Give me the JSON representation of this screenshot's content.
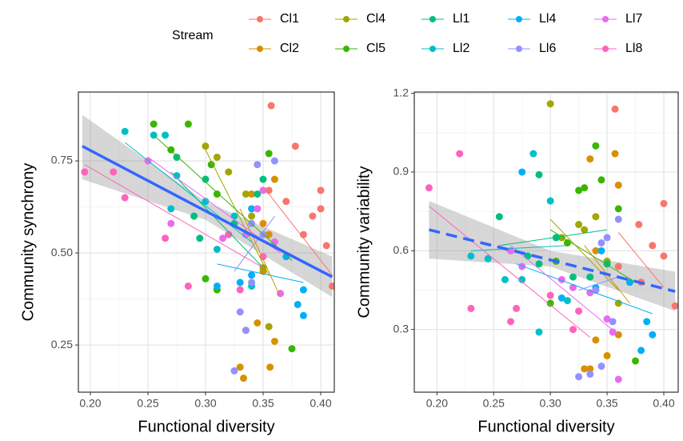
{
  "legend_title": "Stream",
  "chart_data": [
    {
      "type": "scatter",
      "xlabel": "Functional diversity",
      "ylabel": "Community synchrony",
      "xlim": [
        0.1896,
        0.4118
      ],
      "ylim": [
        0.122,
        0.937
      ],
      "xticks": [
        {
          "value": 0.2,
          "label": "0.20"
        },
        {
          "value": 0.25,
          "label": "0.25"
        },
        {
          "value": 0.3,
          "label": "0.30"
        },
        {
          "value": 0.35,
          "label": "0.35"
        },
        {
          "value": 0.4,
          "label": "0.40"
        }
      ],
      "yticks": [
        0.25,
        {
          "value": 0.5,
          "label": "0.50"
        },
        0.75
      ],
      "grid": true,
      "series": [
        {
          "name": "Cl1",
          "color": "#F8766D",
          "x": [
            0.357,
            0.378,
            0.4,
            0.393,
            0.4,
            0.405,
            0.41,
            0.385,
            0.37,
            0.355
          ],
          "values": [
            0.9,
            0.79,
            0.67,
            0.6,
            0.62,
            0.52,
            0.41,
            0.55,
            0.64,
            0.67
          ],
          "fit_x": [
            0.35,
            0.41
          ],
          "fit_y": [
            0.68,
            0.44
          ]
        },
        {
          "name": "Cl2",
          "color": "#D89000",
          "x": [
            0.333,
            0.33,
            0.335,
            0.345,
            0.36,
            0.35,
            0.355,
            0.36,
            0.34,
            0.35,
            0.356
          ],
          "values": [
            0.16,
            0.19,
            0.29,
            0.31,
            0.26,
            0.45,
            0.55,
            0.7,
            0.66,
            0.58,
            0.19
          ],
          "fit_x": [
            0.33,
            0.365
          ],
          "fit_y": [
            0.62,
            0.38
          ]
        },
        {
          "name": "Cl4",
          "color": "#A3A500",
          "x": [
            0.3,
            0.31,
            0.32,
            0.335,
            0.34,
            0.35,
            0.355,
            0.345
          ],
          "values": [
            0.79,
            0.76,
            0.72,
            0.66,
            0.6,
            0.46,
            0.3,
            0.62
          ],
          "fit_x": [
            0.3,
            0.355
          ],
          "fit_y": [
            0.78,
            0.44
          ]
        },
        {
          "name": "Cl5",
          "color": "#39B600",
          "x": [
            0.255,
            0.285,
            0.27,
            0.305,
            0.31,
            0.3,
            0.31,
            0.375,
            0.355,
            0.335
          ],
          "values": [
            0.85,
            0.85,
            0.78,
            0.74,
            0.66,
            0.43,
            0.4,
            0.24,
            0.77,
            0.55
          ],
          "fit_x": [
            0.255,
            0.375
          ],
          "fit_y": [
            0.82,
            0.48
          ]
        },
        {
          "name": "Ll1",
          "color": "#00BF7D",
          "x": [
            0.275,
            0.29,
            0.3,
            0.295,
            0.32,
            0.325,
            0.345,
            0.35
          ],
          "values": [
            0.76,
            0.6,
            0.7,
            0.54,
            0.55,
            0.58,
            0.66,
            0.7
          ],
          "fit_x": [
            0.27,
            0.35
          ],
          "fit_y": [
            0.72,
            0.46
          ]
        },
        {
          "name": "Ll2",
          "color": "#00BFC4",
          "x": [
            0.23,
            0.255,
            0.265,
            0.275,
            0.3,
            0.31,
            0.325,
            0.34,
            0.27
          ],
          "values": [
            0.83,
            0.82,
            0.82,
            0.71,
            0.64,
            0.51,
            0.6,
            0.41,
            0.62
          ],
          "fit_x": [
            0.23,
            0.34
          ],
          "fit_y": [
            0.8,
            0.53
          ]
        },
        {
          "name": "Ll4",
          "color": "#00B0F6",
          "x": [
            0.33,
            0.34,
            0.37,
            0.385,
            0.38,
            0.385,
            0.31,
            0.34
          ],
          "values": [
            0.42,
            0.44,
            0.49,
            0.4,
            0.36,
            0.33,
            0.41,
            0.62
          ],
          "fit_x": [
            0.31,
            0.385
          ],
          "fit_y": [
            0.47,
            0.42
          ]
        },
        {
          "name": "Ll6",
          "color": "#9590FF",
          "x": [
            0.325,
            0.33,
            0.34,
            0.345,
            0.35,
            0.36,
            0.34,
            0.335
          ],
          "values": [
            0.18,
            0.34,
            0.58,
            0.74,
            0.55,
            0.75,
            0.42,
            0.29
          ],
          "fit_x": [
            0.325,
            0.36
          ],
          "fit_y": [
            0.45,
            0.6
          ]
        },
        {
          "name": "Ll7",
          "color": "#E76BF3",
          "x": [
            0.25,
            0.27,
            0.315,
            0.335,
            0.345,
            0.35,
            0.36,
            0.365
          ],
          "values": [
            0.75,
            0.58,
            0.54,
            0.55,
            0.62,
            0.67,
            0.53,
            0.39
          ],
          "fit_x": [
            0.25,
            0.365
          ],
          "fit_y": [
            0.76,
            0.5
          ]
        },
        {
          "name": "Ll8",
          "color": "#FF62BC",
          "x": [
            0.195,
            0.22,
            0.23,
            0.265,
            0.285,
            0.32,
            0.33,
            0.35
          ],
          "values": [
            0.72,
            0.72,
            0.65,
            0.54,
            0.41,
            0.55,
            0.4,
            0.49
          ],
          "fit_x": [
            0.195,
            0.35
          ],
          "fit_y": [
            0.74,
            0.46
          ]
        }
      ],
      "trend": {
        "color": "#3366FF",
        "dashed": false,
        "x": [
          0.193,
          0.3,
          0.41
        ],
        "y": [
          0.79,
          0.614,
          0.435
        ],
        "lower": [
          0.7,
          0.59,
          0.38
        ],
        "upper": [
          0.875,
          0.64,
          0.49
        ]
      }
    },
    {
      "type": "scatter",
      "xlabel": "Functional diversity",
      "ylabel": "Community variability",
      "xlim": [
        0.18,
        0.4127
      ],
      "ylim": [
        0.061,
        1.205
      ],
      "xticks": [
        {
          "value": 0.2,
          "label": "0.20"
        },
        {
          "value": 0.25,
          "label": "0.25"
        },
        {
          "value": 0.3,
          "label": "0.30"
        },
        {
          "value": 0.35,
          "label": "0.35"
        },
        {
          "value": 0.4,
          "label": "0.40"
        }
      ],
      "yticks": [
        0.3,
        0.6,
        0.9,
        1.2
      ],
      "grid": true,
      "series": [
        {
          "x": [
            0.357,
            0.378,
            0.4,
            0.39,
            0.4,
            0.38,
            0.41,
            0.36
          ],
          "values": [
            1.14,
            0.7,
            0.78,
            0.62,
            0.58,
            0.48,
            0.39,
            0.54
          ],
          "fit_x": [
            0.36,
            0.4
          ],
          "fit_y": [
            0.67,
            0.46
          ]
        },
        {
          "x": [
            0.33,
            0.335,
            0.35,
            0.34,
            0.36,
            0.357,
            0.36,
            0.34,
            0.35,
            0.335
          ],
          "values": [
            0.15,
            0.15,
            0.2,
            0.26,
            0.28,
            0.97,
            0.85,
            0.6,
            0.55,
            0.95
          ],
          "fit_x": [
            0.33,
            0.37
          ],
          "fit_y": [
            0.62,
            0.4
          ]
        },
        {
          "x": [
            0.3,
            0.325,
            0.33,
            0.34,
            0.31,
            0.35,
            0.36,
            0.34
          ],
          "values": [
            1.16,
            0.7,
            0.68,
            0.73,
            0.65,
            0.56,
            0.4,
            0.45
          ],
          "fit_x": [
            0.3,
            0.36
          ],
          "fit_y": [
            0.72,
            0.45
          ]
        },
        {
          "x": [
            0.305,
            0.325,
            0.33,
            0.34,
            0.345,
            0.36,
            0.375,
            0.3,
            0.315
          ],
          "values": [
            0.56,
            0.83,
            0.84,
            1.0,
            0.87,
            0.76,
            0.18,
            0.4,
            0.63
          ],
          "fit_x": [
            0.3,
            0.375
          ],
          "fit_y": [
            0.68,
            0.48
          ]
        },
        {
          "x": [
            0.255,
            0.28,
            0.29,
            0.305,
            0.32,
            0.335,
            0.35,
            0.29
          ],
          "values": [
            0.73,
            0.58,
            0.55,
            0.65,
            0.5,
            0.5,
            0.55,
            0.89
          ],
          "fit_x": [
            0.255,
            0.35
          ],
          "fit_y": [
            0.62,
            0.68
          ]
        },
        {
          "x": [
            0.23,
            0.245,
            0.26,
            0.275,
            0.285,
            0.29,
            0.3,
            0.315
          ],
          "values": [
            0.58,
            0.57,
            0.49,
            0.49,
            0.97,
            0.29,
            0.79,
            0.41
          ],
          "fit_x": [
            0.23,
            0.315
          ],
          "fit_y": [
            0.6,
            0.62
          ]
        },
        {
          "x": [
            0.275,
            0.31,
            0.34,
            0.37,
            0.385,
            0.39,
            0.38,
            0.345
          ],
          "values": [
            0.9,
            0.42,
            0.46,
            0.48,
            0.33,
            0.28,
            0.22,
            0.6
          ],
          "fit_x": [
            0.27,
            0.39
          ],
          "fit_y": [
            0.55,
            0.36
          ]
        },
        {
          "x": [
            0.325,
            0.335,
            0.345,
            0.35,
            0.36,
            0.355,
            0.34,
            0.345
          ],
          "values": [
            0.12,
            0.13,
            0.63,
            0.65,
            0.72,
            0.33,
            0.45,
            0.16
          ],
          "fit_x": [
            0.325,
            0.36
          ],
          "fit_y": [
            0.45,
            0.5
          ]
        },
        {
          "x": [
            0.265,
            0.275,
            0.31,
            0.335,
            0.35,
            0.355,
            0.36,
            0.32
          ],
          "values": [
            0.6,
            0.54,
            0.49,
            0.44,
            0.34,
            0.29,
            0.11,
            0.46
          ],
          "fit_x": [
            0.265,
            0.36
          ],
          "fit_y": [
            0.62,
            0.28
          ]
        },
        {
          "x": [
            0.193,
            0.22,
            0.23,
            0.265,
            0.27,
            0.3,
            0.32,
            0.325
          ],
          "values": [
            0.84,
            0.97,
            0.38,
            0.33,
            0.38,
            0.43,
            0.3,
            0.37
          ],
          "fit_x": [
            0.193,
            0.335
          ],
          "fit_y": [
            0.77,
            0.27
          ]
        }
      ],
      "trend": {
        "color": "#3366FF",
        "dashed": true,
        "x": [
          0.193,
          0.3,
          0.41
        ],
        "y": [
          0.68,
          0.565,
          0.445
        ],
        "lower": [
          0.57,
          0.54,
          0.37
        ],
        "upper": [
          0.79,
          0.6,
          0.52
        ]
      }
    }
  ]
}
